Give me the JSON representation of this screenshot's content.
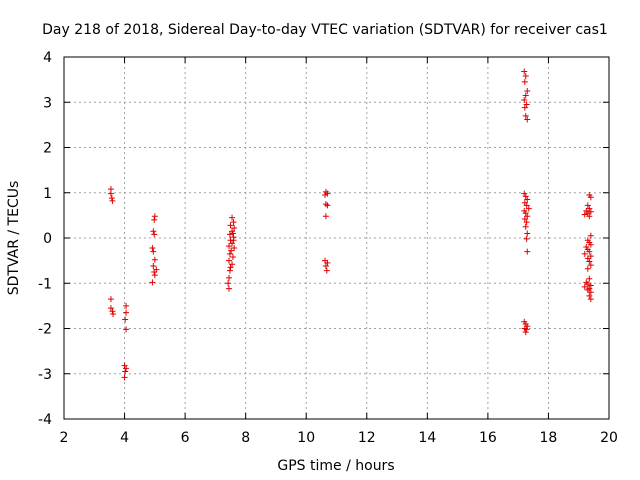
{
  "chart_data": {
    "type": "scatter",
    "title": "Day 218 of 2018, Sidereal Day-to-day VTEC variation (SDTVAR) for receiver cas1",
    "xlabel": "GPS time / hours",
    "ylabel": "SDTVAR / TECUs",
    "xlim": [
      2,
      20
    ],
    "ylim": [
      -4,
      4
    ],
    "xticks": [
      2,
      4,
      6,
      8,
      10,
      12,
      14,
      16,
      18,
      20
    ],
    "yticks": [
      -4,
      -3,
      -2,
      -1,
      0,
      1,
      2,
      3,
      4
    ],
    "xtick_labels": [
      "2",
      "4",
      "6",
      "8",
      "10",
      "12",
      "14",
      "16",
      "18",
      "20"
    ],
    "ytick_labels": [
      "-4",
      "-3",
      "-2",
      "-1",
      "0",
      "1",
      "2",
      "3",
      "4"
    ],
    "grid": true,
    "marker_color": "#e00000",
    "series": [
      {
        "name": "cas1",
        "points": [
          [
            3.55,
            1.08
          ],
          [
            3.55,
            0.98
          ],
          [
            3.58,
            0.88
          ],
          [
            3.6,
            0.82
          ],
          [
            3.55,
            -1.35
          ],
          [
            3.55,
            -1.55
          ],
          [
            3.6,
            -1.62
          ],
          [
            3.62,
            -1.68
          ],
          [
            4.05,
            -1.5
          ],
          [
            4.05,
            -1.65
          ],
          [
            4.02,
            -1.8
          ],
          [
            4.05,
            -2.02
          ],
          [
            4.0,
            -2.82
          ],
          [
            4.05,
            -2.88
          ],
          [
            4.02,
            -2.95
          ],
          [
            4.0,
            -3.08
          ],
          [
            5.0,
            0.48
          ],
          [
            4.98,
            0.4
          ],
          [
            4.95,
            0.15
          ],
          [
            4.98,
            0.08
          ],
          [
            4.92,
            -0.22
          ],
          [
            4.95,
            -0.3
          ],
          [
            5.0,
            -0.48
          ],
          [
            4.95,
            -0.62
          ],
          [
            5.05,
            -0.7
          ],
          [
            4.98,
            -0.75
          ],
          [
            5.0,
            -0.82
          ],
          [
            4.92,
            -0.98
          ],
          [
            7.55,
            0.45
          ],
          [
            7.6,
            0.35
          ],
          [
            7.5,
            0.28
          ],
          [
            7.62,
            0.22
          ],
          [
            7.55,
            0.15
          ],
          [
            7.48,
            0.08
          ],
          [
            7.6,
            0.02
          ],
          [
            7.5,
            -0.05
          ],
          [
            7.55,
            -0.12
          ],
          [
            7.45,
            -0.18
          ],
          [
            7.62,
            -0.22
          ],
          [
            7.52,
            -0.28
          ],
          [
            7.48,
            -0.35
          ],
          [
            7.58,
            -0.42
          ],
          [
            7.45,
            -0.5
          ],
          [
            7.55,
            -0.58
          ],
          [
            7.5,
            -0.65
          ],
          [
            7.48,
            -0.72
          ],
          [
            7.45,
            -0.88
          ],
          [
            7.42,
            -1.0
          ],
          [
            7.45,
            -1.12
          ],
          [
            7.6,
            -0.05
          ],
          [
            7.58,
            0.1
          ],
          [
            10.65,
            1.02
          ],
          [
            10.7,
            0.98
          ],
          [
            10.62,
            0.95
          ],
          [
            10.65,
            0.75
          ],
          [
            10.7,
            0.72
          ],
          [
            10.65,
            0.48
          ],
          [
            10.62,
            -0.5
          ],
          [
            10.7,
            -0.55
          ],
          [
            10.65,
            -0.62
          ],
          [
            10.68,
            -0.72
          ],
          [
            17.2,
            3.68
          ],
          [
            17.25,
            3.58
          ],
          [
            17.22,
            3.45
          ],
          [
            17.3,
            3.25
          ],
          [
            17.25,
            3.15
          ],
          [
            17.2,
            3.05
          ],
          [
            17.28,
            2.95
          ],
          [
            17.22,
            2.88
          ],
          [
            17.25,
            2.7
          ],
          [
            17.3,
            2.62
          ],
          [
            17.2,
            0.98
          ],
          [
            17.25,
            0.92
          ],
          [
            17.3,
            0.85
          ],
          [
            17.22,
            0.78
          ],
          [
            17.28,
            0.72
          ],
          [
            17.35,
            0.65
          ],
          [
            17.2,
            0.6
          ],
          [
            17.25,
            0.55
          ],
          [
            17.3,
            0.48
          ],
          [
            17.22,
            0.42
          ],
          [
            17.28,
            0.35
          ],
          [
            17.25,
            0.25
          ],
          [
            17.3,
            0.1
          ],
          [
            17.28,
            -0.02
          ],
          [
            17.3,
            -0.3
          ],
          [
            17.2,
            -1.85
          ],
          [
            17.25,
            -1.9
          ],
          [
            17.3,
            -1.95
          ],
          [
            17.22,
            -2.0
          ],
          [
            17.28,
            -2.02
          ],
          [
            17.25,
            -2.08
          ],
          [
            19.35,
            0.95
          ],
          [
            19.4,
            0.9
          ],
          [
            19.3,
            0.72
          ],
          [
            19.35,
            0.65
          ],
          [
            19.25,
            0.6
          ],
          [
            19.4,
            0.58
          ],
          [
            19.3,
            0.55
          ],
          [
            19.2,
            0.52
          ],
          [
            19.35,
            0.48
          ],
          [
            19.4,
            0.05
          ],
          [
            19.3,
            -0.05
          ],
          [
            19.35,
            -0.1
          ],
          [
            19.4,
            -0.15
          ],
          [
            19.25,
            -0.2
          ],
          [
            19.3,
            -0.25
          ],
          [
            19.35,
            -0.3
          ],
          [
            19.2,
            -0.35
          ],
          [
            19.4,
            -0.4
          ],
          [
            19.3,
            -0.45
          ],
          [
            19.35,
            -0.52
          ],
          [
            19.4,
            -0.6
          ],
          [
            19.3,
            -0.68
          ],
          [
            19.35,
            -0.9
          ],
          [
            19.25,
            -0.98
          ],
          [
            19.3,
            -1.02
          ],
          [
            19.4,
            -1.05
          ],
          [
            19.2,
            -1.08
          ],
          [
            19.35,
            -1.12
          ],
          [
            19.3,
            -1.15
          ],
          [
            19.4,
            -1.2
          ],
          [
            19.35,
            -1.28
          ],
          [
            19.4,
            -1.35
          ]
        ]
      }
    ]
  }
}
